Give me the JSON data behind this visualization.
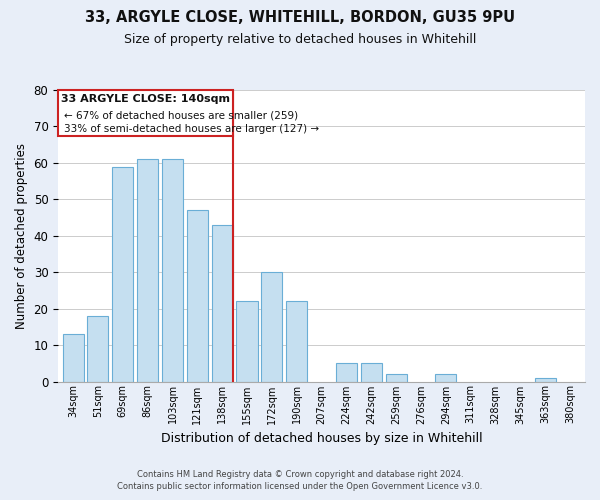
{
  "title1": "33, ARGYLE CLOSE, WHITEHILL, BORDON, GU35 9PU",
  "title2": "Size of property relative to detached houses in Whitehill",
  "xlabel": "Distribution of detached houses by size in Whitehill",
  "ylabel": "Number of detached properties",
  "bar_labels": [
    "34sqm",
    "51sqm",
    "69sqm",
    "86sqm",
    "103sqm",
    "121sqm",
    "138sqm",
    "155sqm",
    "172sqm",
    "190sqm",
    "207sqm",
    "224sqm",
    "242sqm",
    "259sqm",
    "276sqm",
    "294sqm",
    "311sqm",
    "328sqm",
    "345sqm",
    "363sqm",
    "380sqm"
  ],
  "bar_values": [
    13,
    18,
    59,
    61,
    61,
    47,
    43,
    22,
    30,
    22,
    0,
    5,
    5,
    2,
    0,
    2,
    0,
    0,
    0,
    1,
    0
  ],
  "bar_color": "#c5dff0",
  "bar_edge_color": "#6aaed6",
  "highlight_index": 6,
  "highlight_color": "#cc2222",
  "ylim": [
    0,
    80
  ],
  "yticks": [
    0,
    10,
    20,
    30,
    40,
    50,
    60,
    70,
    80
  ],
  "annotation_title": "33 ARGYLE CLOSE: 140sqm",
  "annotation_line1": "← 67% of detached houses are smaller (259)",
  "annotation_line2": "33% of semi-detached houses are larger (127) →",
  "footer1": "Contains HM Land Registry data © Crown copyright and database right 2024.",
  "footer2": "Contains public sector information licensed under the Open Government Licence v3.0.",
  "bg_color": "#e8eef8",
  "plot_bg_color": "#ffffff",
  "grid_color": "#cccccc"
}
